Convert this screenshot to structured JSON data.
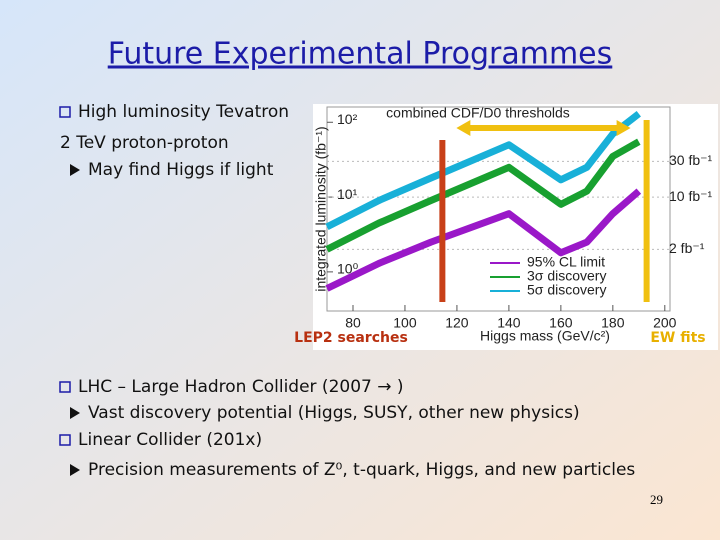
{
  "title": "Future Experimental Programmes",
  "bullets": [
    {
      "text": "High luminosity Tevatron",
      "sub": [
        {
          "text": "2 TeV proton-proton",
          "arrow": false
        },
        {
          "text": "May find Higgs if light",
          "arrow": true
        }
      ]
    },
    {
      "text": "LHC – Large Hadron Collider (2007 → )",
      "sub": [
        {
          "text": "Vast discovery potential (Higgs, SUSY, other new physics)",
          "arrow": true
        }
      ]
    },
    {
      "text": "Linear Collider (201x)",
      "sub": [
        {
          "text": "Precision measurements of Z⁰, t-quark, Higgs, and new particles",
          "arrow": true
        }
      ]
    }
  ],
  "figure": {
    "type": "line",
    "title": "combined CDF/D0 thresholds",
    "xlabel": "Higgs mass (GeV/c²)",
    "ylabel": "integrated luminosity (fb⁻¹)",
    "log_y": true,
    "xlim": [
      70,
      202
    ],
    "xticks": [
      80,
      100,
      120,
      140,
      160,
      180,
      200
    ],
    "ylim": [
      0.3,
      160
    ],
    "yticks": [
      {
        "value": 1,
        "label": "10⁰"
      },
      {
        "value": 10,
        "label": "10¹"
      },
      {
        "value": 100,
        "label": "10²"
      }
    ],
    "x": [
      70,
      90,
      110,
      140,
      160,
      170,
      180,
      190
    ],
    "series": [
      {
        "name": "95% CL limit",
        "color": "#9a18c8",
        "values": [
          0.6,
          1.3,
          2.5,
          6,
          1.8,
          2.5,
          6,
          12
        ]
      },
      {
        "name": "3σ discovery",
        "color": "#18a030",
        "values": [
          2,
          4.5,
          9,
          25,
          8,
          12,
          35,
          55
        ]
      },
      {
        "name": "5σ discovery",
        "color": "#18b0d8",
        "values": [
          4,
          9,
          18,
          50,
          17,
          25,
          70,
          130
        ]
      }
    ],
    "lumi_lines": [
      {
        "value": 30,
        "label": "30 fb⁻¹"
      },
      {
        "value": 10,
        "label": "10 fb⁻¹"
      },
      {
        "value": 2,
        "label": "2 fb⁻¹"
      }
    ],
    "bands": [
      {
        "label": "LEP2 searches",
        "x": 114.4,
        "color": "#c84018"
      },
      {
        "label": "EW fits",
        "x": 193,
        "color": "#f0c010"
      }
    ]
  },
  "page_number": "29"
}
